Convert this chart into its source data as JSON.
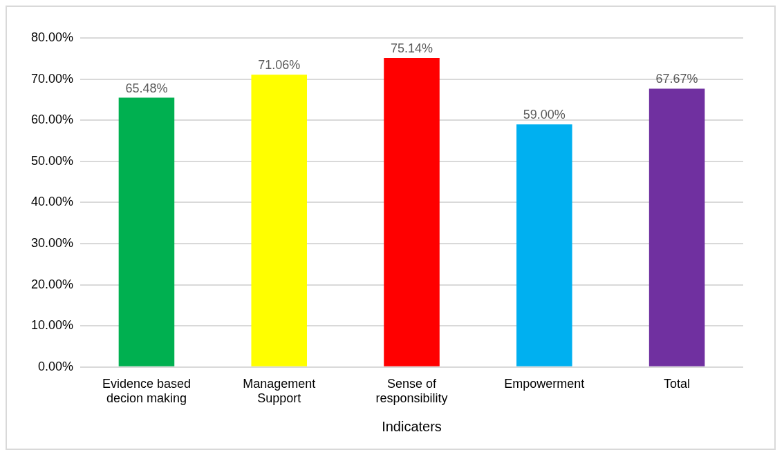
{
  "chart_data": {
    "type": "bar",
    "xlabel": "Indicaters",
    "categories": [
      "Evidence based decion making",
      "Management Support",
      "Sense of responsibility",
      "Empowerment",
      "Total"
    ],
    "values": [
      65.48,
      71.06,
      75.14,
      59.0,
      67.67
    ],
    "colors": [
      "#00b050",
      "#ffff00",
      "#ff0000",
      "#00b0f0",
      "#7030a0"
    ],
    "value_labels": [
      "65.48%",
      "71.06%",
      "75.14%",
      "59.00%",
      "67.67%"
    ],
    "ylim": [
      0,
      80
    ],
    "yticks": [
      {
        "value": 0,
        "label": "0.00%"
      },
      {
        "value": 10,
        "label": "10.00%"
      },
      {
        "value": 20,
        "label": "20.00%"
      },
      {
        "value": 30,
        "label": "30.00%"
      },
      {
        "value": 40,
        "label": "40.00%"
      },
      {
        "value": 50,
        "label": "50.00%"
      },
      {
        "value": 60,
        "label": "60.00%"
      },
      {
        "value": 70,
        "label": "70.00%"
      },
      {
        "value": 80,
        "label": "80.00%"
      }
    ],
    "grid": "y",
    "legend": false
  }
}
